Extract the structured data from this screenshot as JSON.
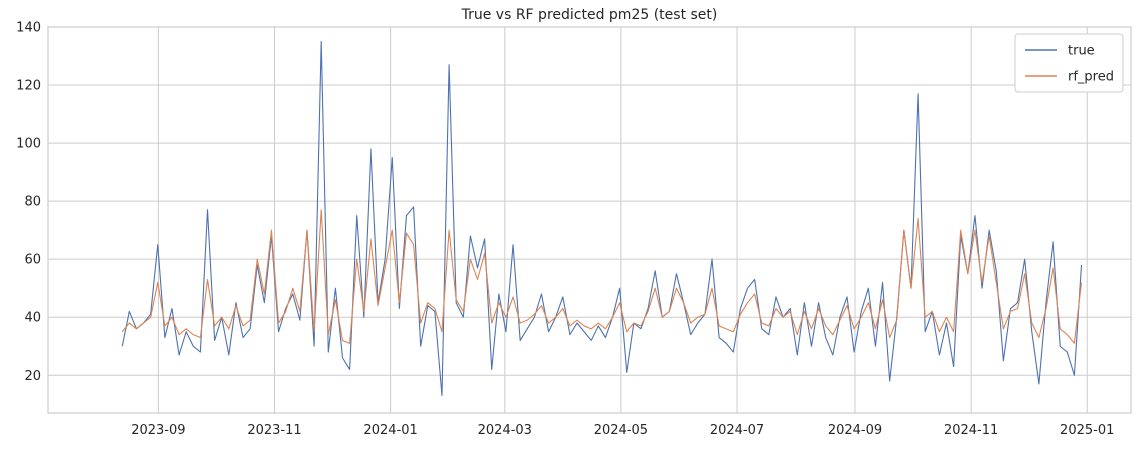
{
  "chart_data": {
    "type": "line",
    "title": "True vs RF predicted pm25 (test set)",
    "xlabel": "",
    "ylabel": "",
    "x_start": "2023-08-13",
    "x_end": "2024-12-29",
    "x_step": "7 days",
    "xlim": [
      "2023-07-05",
      "2025-01-24"
    ],
    "ylim": [
      7,
      140
    ],
    "xticks": [
      "2023-09",
      "2023-11",
      "2024-01",
      "2024-03",
      "2024-05",
      "2024-07",
      "2024-09",
      "2024-11",
      "2025-01"
    ],
    "yticks": [
      20,
      40,
      60,
      80,
      100,
      120,
      140
    ],
    "grid": true,
    "legend_position": "top-right",
    "colors": {
      "true": "#4c72b0",
      "rf_pred": "#dd8452",
      "grid": "#cccccc",
      "axes_edge": "#cccccc"
    },
    "series": [
      {
        "name": "true",
        "values": [
          30,
          42,
          36,
          38,
          41,
          65,
          33,
          43,
          27,
          35,
          30,
          28,
          77,
          32,
          40,
          27,
          45,
          33,
          36,
          58,
          45,
          68,
          35,
          43,
          48,
          39,
          70,
          30,
          135,
          28,
          50,
          26,
          22,
          75,
          40,
          98,
          45,
          60,
          95,
          43,
          75,
          78,
          30,
          44,
          42,
          13,
          127,
          45,
          40,
          68,
          57,
          67,
          22,
          48,
          35,
          65,
          32,
          36,
          40,
          48,
          35,
          40,
          47,
          34,
          38,
          35,
          32,
          37,
          33,
          40,
          50,
          21,
          38,
          36,
          43,
          56,
          40,
          42,
          55,
          45,
          34,
          38,
          41,
          60,
          33,
          31,
          28,
          43,
          50,
          53,
          36,
          34,
          47,
          40,
          43,
          27,
          45,
          30,
          45,
          33,
          27,
          40,
          47,
          28,
          42,
          50,
          30,
          52,
          18,
          40,
          70,
          50,
          117,
          35,
          42,
          27,
          38,
          23,
          68,
          55,
          75,
          50,
          70,
          56,
          25,
          43,
          45,
          60,
          35,
          17,
          45,
          66,
          30,
          28,
          20,
          58
        ]
      },
      {
        "name": "rf_pred",
        "values": [
          35,
          38,
          36,
          38,
          40,
          52,
          37,
          40,
          34,
          36,
          34,
          33,
          53,
          37,
          40,
          36,
          44,
          37,
          39,
          60,
          48,
          70,
          38,
          42,
          50,
          42,
          70,
          35,
          77,
          34,
          46,
          32,
          31,
          60,
          42,
          67,
          44,
          57,
          70,
          45,
          69,
          65,
          38,
          45,
          43,
          35,
          70,
          46,
          42,
          60,
          53,
          62,
          38,
          45,
          40,
          47,
          38,
          39,
          41,
          44,
          38,
          40,
          43,
          37,
          39,
          37,
          36,
          38,
          36,
          40,
          45,
          35,
          38,
          37,
          42,
          50,
          40,
          42,
          50,
          45,
          38,
          40,
          41,
          50,
          37,
          36,
          35,
          41,
          45,
          48,
          38,
          37,
          43,
          40,
          42,
          34,
          42,
          36,
          43,
          37,
          34,
          39,
          44,
          36,
          40,
          45,
          36,
          46,
          33,
          39,
          70,
          50,
          74,
          40,
          42,
          35,
          40,
          35,
          70,
          55,
          70,
          52,
          68,
          52,
          36,
          42,
          43,
          55,
          38,
          33,
          43,
          57,
          36,
          34,
          31,
          52
        ]
      }
    ]
  }
}
